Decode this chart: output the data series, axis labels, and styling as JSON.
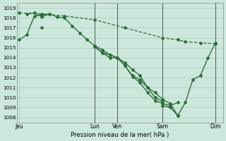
{
  "background_color": "#cce8dc",
  "grid_color": "#aaccbb",
  "line_color": "#2d6e3a",
  "x_tick_labels": [
    "Jeu",
    "Lun",
    "Ven",
    "Sam",
    "Dim"
  ],
  "x_tick_positions": [
    0,
    10,
    13,
    19,
    26
  ],
  "xlabel": "Pression niveau de la mer( hPa )",
  "ylim": [
    1007.5,
    1019.5
  ],
  "yticks": [
    1008,
    1009,
    1010,
    1011,
    1012,
    1013,
    1014,
    1015,
    1016,
    1017,
    1018,
    1019
  ],
  "series": [
    {
      "x": [
        0,
        1,
        2,
        3,
        4,
        5,
        6,
        7,
        8,
        9,
        10,
        11,
        12,
        13,
        14,
        15,
        16,
        17,
        18,
        19,
        20,
        21
      ],
      "y": [
        1015.8,
        1016.3,
        1018.2,
        1018.3,
        1018.4,
        1018.1,
        1018.0,
        1017.2,
        1016.5,
        1015.8,
        1015.2,
        1014.8,
        1014.3,
        1014.0,
        1013.5,
        1012.8,
        1012.2,
        1011.0,
        1010.5,
        1009.8,
        1009.4,
        1008.2
      ],
      "style": "-",
      "marker": "D",
      "markersize": 2.0,
      "linewidth": 1.0
    },
    {
      "x": [
        0,
        1,
        2,
        3,
        4,
        5,
        6,
        7,
        8,
        9,
        10,
        11,
        12,
        13,
        14,
        15,
        16,
        17,
        18,
        19,
        20,
        21
      ],
      "y": [
        null,
        1018.4,
        1018.5,
        1018.1,
        1018.4,
        null,
        null,
        null,
        null,
        null,
        1015.1,
        1014.5,
        1014.3,
        1014.0,
        1013.2,
        1012.2,
        1011.8,
        1011.0,
        1010.0,
        1009.6,
        null,
        null
      ],
      "style": "-",
      "marker": "D",
      "markersize": 2.0,
      "linewidth": 1.0
    },
    {
      "x": [
        0,
        2,
        3,
        4,
        5,
        6,
        7,
        8,
        9,
        10,
        11,
        12,
        13,
        14,
        15,
        16,
        17,
        18,
        19,
        20,
        21,
        22
      ],
      "y": [
        null,
        null,
        1017.0,
        null,
        null,
        null,
        null,
        null,
        null,
        1015.1,
        1014.5,
        1014.0,
        1014.0,
        1013.2,
        1012.1,
        1011.5,
        1010.5,
        1009.7,
        1009.4,
        1009.2,
        1009.5,
        null
      ],
      "style": "-",
      "marker": "D",
      "markersize": 2.0,
      "linewidth": 1.0
    },
    {
      "x": [
        0,
        3,
        6,
        10,
        14,
        19,
        21,
        22,
        24,
        26
      ],
      "y": [
        1018.5,
        1018.4,
        1018.2,
        1017.8,
        1017.0,
        1016.0,
        1015.8,
        1015.6,
        1015.5,
        1015.4
      ],
      "style": "--",
      "marker": "D",
      "markersize": 2.0,
      "linewidth": 0.9
    }
  ],
  "solid_series_indices": [
    0,
    1,
    2
  ],
  "vline_positions": [
    10,
    13,
    19,
    26
  ],
  "vline_color": "#444444",
  "vline_linewidth": 0.6,
  "xlim": [
    -0.3,
    27
  ],
  "bottom_series": {
    "x": [
      19,
      20,
      21,
      22,
      23,
      24,
      25,
      26
    ],
    "y": [
      1009.2,
      1009.0,
      1008.2,
      1009.5,
      1011.8,
      1012.2,
      1014.0,
      1015.5
    ]
  }
}
